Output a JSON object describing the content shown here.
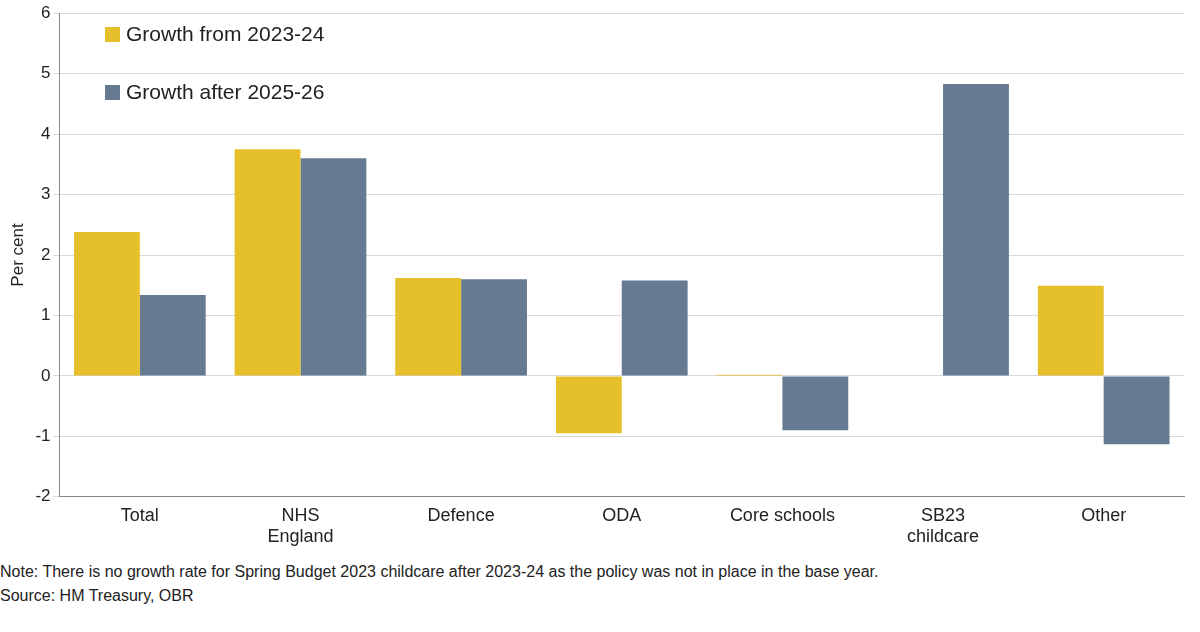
{
  "chart_data": {
    "type": "bar",
    "y_label": "Per cent",
    "categories": [
      "Total",
      [
        "NHS",
        "England"
      ],
      "Defence",
      "ODA",
      "Core schools",
      [
        "SB23",
        "childcare"
      ],
      "Other"
    ],
    "series": [
      {
        "name": "Growth from 2023-24",
        "color": "#E6C02B",
        "values": [
          2.38,
          3.75,
          1.62,
          -0.95,
          0.02,
          null,
          1.49
        ]
      },
      {
        "name": "Growth after 2025-26",
        "color": "#667A92",
        "values": [
          1.34,
          3.6,
          1.6,
          1.58,
          -0.9,
          4.83,
          -1.13
        ]
      }
    ],
    "ylim": [
      -2,
      6
    ],
    "yticks": [
      -2,
      -1,
      0,
      1,
      2,
      3,
      4,
      5,
      6
    ],
    "grid": true,
    "legend": "top-left",
    "annotations": [
      "Note: There is no growth rate for Spring Budget 2023 childcare after 2023-24 as the policy was not in place in the base year.",
      "Source: HM Treasury, OBR"
    ]
  }
}
